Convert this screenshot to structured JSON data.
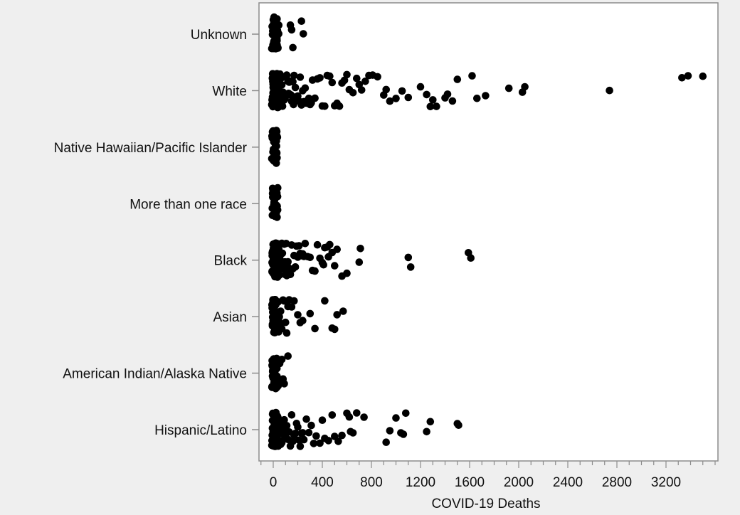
{
  "chart_data": {
    "type": "scatter",
    "subtype": "jitter-strip",
    "xlabel": "COVID-19 Deaths",
    "ylabel": "",
    "xlim": [
      -100,
      3650
    ],
    "xticks": [
      0,
      400,
      800,
      1200,
      1600,
      2000,
      2400,
      2800,
      3200
    ],
    "x_minor_step": 100,
    "grid": false,
    "legend": "none",
    "point_color": "#000000",
    "categories": [
      "Unknown",
      "White",
      "Native Hawaiian/Pacific Islander",
      "More than one race",
      "Black",
      "Asian",
      "American Indian/Alaska Native",
      "Hispanic/Latino"
    ],
    "series": [
      {
        "category": "Unknown",
        "values": [
          0,
          0,
          0,
          0,
          0,
          0,
          0,
          0,
          0,
          0,
          0,
          0,
          0,
          0,
          0,
          0,
          0,
          0,
          0,
          0,
          0,
          0,
          1,
          1,
          1,
          1,
          1,
          1,
          1,
          1,
          2,
          2,
          2,
          2,
          2,
          2,
          3,
          3,
          3,
          3,
          4,
          4,
          4,
          5,
          5,
          6,
          6,
          7,
          8,
          9,
          10,
          12,
          15,
          18,
          22,
          25,
          30,
          140,
          150,
          160,
          230,
          245
        ]
      },
      {
        "category": "White",
        "values": [
          0,
          0,
          0,
          0,
          0,
          0,
          0,
          0,
          0,
          0,
          0,
          0,
          0,
          0,
          0,
          0,
          0,
          0,
          0,
          0,
          1,
          1,
          1,
          1,
          1,
          1,
          1,
          1,
          1,
          1,
          1,
          1,
          2,
          2,
          2,
          2,
          2,
          2,
          2,
          2,
          2,
          3,
          3,
          3,
          3,
          3,
          3,
          3,
          4,
          4,
          4,
          4,
          4,
          4,
          5,
          5,
          5,
          5,
          5,
          6,
          6,
          6,
          6,
          7,
          7,
          7,
          7,
          8,
          8,
          8,
          9,
          9,
          9,
          10,
          10,
          10,
          11,
          11,
          12,
          12,
          13,
          13,
          14,
          14,
          15,
          15,
          16,
          17,
          18,
          19,
          20,
          21,
          22,
          23,
          24,
          25,
          26,
          28,
          29,
          30,
          32,
          33,
          35,
          37,
          38,
          40,
          42,
          44,
          46,
          48,
          50,
          52,
          55,
          58,
          60,
          63,
          66,
          70,
          73,
          76,
          80,
          84,
          88,
          92,
          96,
          100,
          105,
          110,
          115,
          120,
          125,
          130,
          135,
          140,
          145,
          150,
          160,
          165,
          170,
          175,
          180,
          190,
          200,
          210,
          220,
          230,
          240,
          250,
          260,
          270,
          280,
          290,
          300,
          310,
          320,
          340,
          360,
          380,
          400,
          420,
          440,
          460,
          480,
          500,
          520,
          540,
          560,
          580,
          600,
          620,
          650,
          680,
          700,
          720,
          750,
          780,
          810,
          850,
          900,
          920,
          950,
          1000,
          1050,
          1100,
          1200,
          1250,
          1280,
          1300,
          1330,
          1400,
          1420,
          1460,
          1500,
          1620,
          1660,
          1730,
          1920,
          2030,
          2050,
          2740,
          3330,
          3380,
          3500
        ]
      },
      {
        "category": "Native Hawaiian/Pacific Islander",
        "values": [
          0,
          0,
          0,
          0,
          0,
          0,
          0,
          0,
          0,
          0,
          0,
          0,
          0,
          0,
          0,
          0,
          0,
          0,
          0,
          1,
          1,
          1,
          1,
          1,
          1,
          1,
          2,
          2,
          2,
          3,
          3,
          4,
          5,
          10
        ]
      },
      {
        "category": "More than one race",
        "values": [
          0,
          0,
          0,
          0,
          0,
          0,
          0,
          0,
          0,
          0,
          0,
          0,
          0,
          0,
          0,
          0,
          0,
          0,
          0,
          1,
          1,
          1,
          1,
          1,
          1,
          1,
          1,
          2,
          2,
          2,
          3,
          3,
          4,
          5,
          6,
          10
        ]
      },
      {
        "category": "Black",
        "values": [
          0,
          0,
          0,
          0,
          0,
          0,
          0,
          0,
          0,
          0,
          0,
          0,
          0,
          0,
          0,
          0,
          0,
          0,
          0,
          0,
          0,
          0,
          0,
          0,
          1,
          1,
          1,
          1,
          1,
          1,
          1,
          1,
          1,
          1,
          1,
          1,
          2,
          2,
          2,
          2,
          2,
          2,
          2,
          2,
          2,
          3,
          3,
          3,
          3,
          3,
          3,
          4,
          4,
          4,
          4,
          4,
          5,
          5,
          5,
          5,
          6,
          6,
          6,
          7,
          7,
          7,
          8,
          8,
          9,
          9,
          10,
          10,
          11,
          12,
          13,
          14,
          15,
          16,
          17,
          18,
          19,
          20,
          22,
          24,
          26,
          28,
          30,
          32,
          34,
          36,
          38,
          40,
          43,
          46,
          49,
          52,
          55,
          58,
          62,
          66,
          70,
          75,
          80,
          85,
          90,
          95,
          100,
          105,
          110,
          115,
          120,
          125,
          130,
          140,
          150,
          160,
          170,
          180,
          190,
          200,
          210,
          220,
          230,
          240,
          250,
          260,
          280,
          300,
          320,
          340,
          360,
          380,
          400,
          410,
          420,
          440,
          450,
          460,
          480,
          500,
          520,
          560,
          600,
          700,
          710,
          1100,
          1120,
          1590,
          1610
        ]
      },
      {
        "category": "Asian",
        "values": [
          0,
          0,
          0,
          0,
          0,
          0,
          0,
          0,
          0,
          0,
          0,
          0,
          0,
          0,
          0,
          0,
          0,
          1,
          1,
          1,
          1,
          1,
          1,
          1,
          1,
          2,
          2,
          2,
          2,
          2,
          3,
          3,
          3,
          3,
          4,
          4,
          5,
          5,
          6,
          7,
          8,
          9,
          10,
          12,
          14,
          16,
          18,
          20,
          23,
          26,
          30,
          35,
          40,
          45,
          50,
          55,
          60,
          70,
          80,
          90,
          100,
          110,
          120,
          130,
          150,
          170,
          200,
          220,
          240,
          300,
          340,
          420,
          480,
          500,
          520,
          570
        ]
      },
      {
        "category": "American Indian/Alaska Native",
        "values": [
          0,
          0,
          0,
          0,
          0,
          0,
          0,
          0,
          0,
          0,
          0,
          0,
          0,
          0,
          0,
          0,
          0,
          0,
          0,
          1,
          1,
          1,
          1,
          1,
          1,
          1,
          1,
          2,
          2,
          2,
          2,
          3,
          3,
          3,
          4,
          4,
          5,
          6,
          8,
          10,
          12,
          15,
          20,
          25,
          30,
          40,
          50,
          60,
          70,
          80,
          90,
          120
        ]
      },
      {
        "category": "Hispanic/Latino",
        "values": [
          0,
          0,
          0,
          0,
          0,
          0,
          0,
          0,
          0,
          0,
          0,
          0,
          0,
          0,
          0,
          0,
          0,
          0,
          0,
          0,
          0,
          0,
          1,
          1,
          1,
          1,
          1,
          1,
          1,
          1,
          1,
          1,
          2,
          2,
          2,
          2,
          2,
          2,
          2,
          2,
          3,
          3,
          3,
          3,
          3,
          3,
          4,
          4,
          4,
          4,
          4,
          5,
          5,
          5,
          5,
          6,
          6,
          6,
          7,
          7,
          8,
          8,
          9,
          9,
          10,
          10,
          11,
          12,
          13,
          14,
          15,
          16,
          18,
          20,
          22,
          24,
          26,
          28,
          30,
          33,
          36,
          40,
          44,
          48,
          52,
          56,
          60,
          65,
          70,
          75,
          80,
          85,
          90,
          95,
          100,
          110,
          120,
          130,
          140,
          150,
          160,
          170,
          180,
          190,
          200,
          210,
          220,
          230,
          240,
          250,
          270,
          290,
          310,
          330,
          350,
          380,
          400,
          420,
          450,
          480,
          500,
          530,
          560,
          600,
          620,
          630,
          650,
          680,
          740,
          920,
          950,
          1000,
          1040,
          1060,
          1080,
          1250,
          1280,
          1500,
          1510
        ]
      }
    ]
  }
}
